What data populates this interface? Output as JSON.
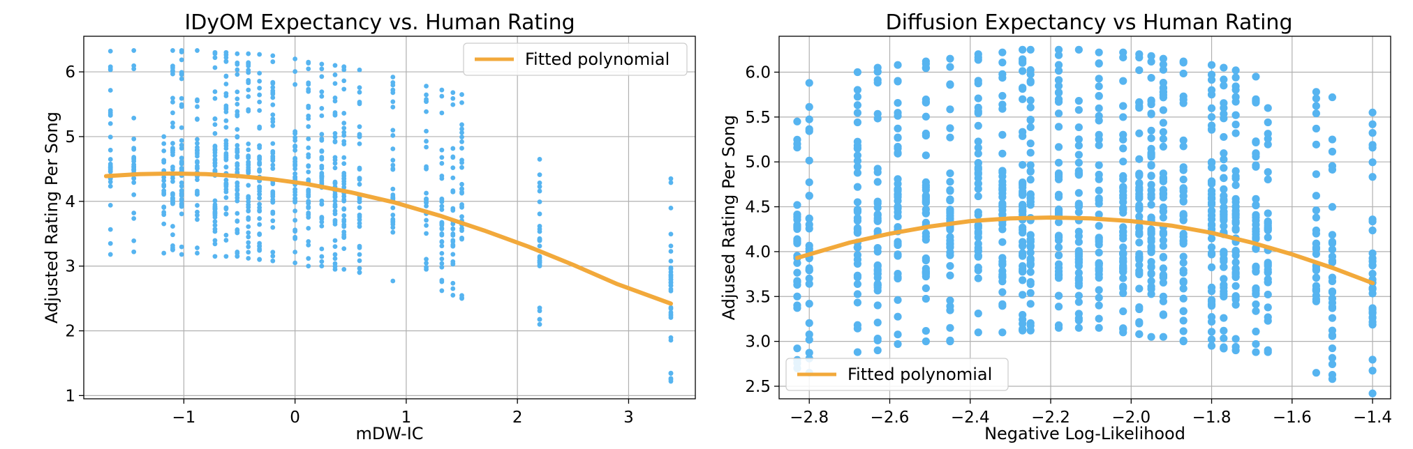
{
  "colors": {
    "points": "#56b4f0",
    "fit": "#f2a93b",
    "grid": "#b0b0b0",
    "axis": "#000000"
  },
  "chart_data": [
    {
      "type": "scatter",
      "title": "IDyOM Expectancy vs. Human Rating",
      "xlabel": "mDW-IC",
      "ylabel": "Adjusted Rating Per Song",
      "xlim": [
        -1.9,
        3.6
      ],
      "ylim": [
        0.95,
        6.55
      ],
      "xticks": [
        -1,
        0,
        1,
        2,
        3
      ],
      "xtick_labels": [
        "−1",
        "0",
        "1",
        "2",
        "3"
      ],
      "yticks": [
        1,
        2,
        3,
        4,
        5,
        6
      ],
      "ytick_labels": [
        "1",
        "2",
        "3",
        "4",
        "5",
        "6"
      ],
      "grid": true,
      "legend": {
        "label": "Fitted polynomial",
        "position": "top-right"
      },
      "fit_curve": {
        "name": "Fitted polynomial",
        "x": [
          -1.7,
          -1.4,
          -1.1,
          -0.8,
          -0.5,
          -0.2,
          0.1,
          0.5,
          0.9,
          1.3,
          1.7,
          2.1,
          2.5,
          2.9,
          3.38
        ],
        "y": [
          4.39,
          4.42,
          4.43,
          4.42,
          4.39,
          4.34,
          4.27,
          4.14,
          3.98,
          3.78,
          3.55,
          3.3,
          3.02,
          2.72,
          2.42
        ]
      },
      "columns": [
        {
          "x": -1.66,
          "ymin": 3.18,
          "ymax": 6.32,
          "n": 34,
          "dense": [
            4.3,
            4.6
          ]
        },
        {
          "x": -1.45,
          "ymin": 3.22,
          "ymax": 6.33,
          "n": 30,
          "dense": [
            4.4,
            4.7
          ]
        },
        {
          "x": -1.18,
          "ymin": 3.2,
          "ymax": 5.0,
          "n": 24,
          "dense": [
            4.0,
            4.7
          ]
        },
        {
          "x": -1.1,
          "ymin": 3.25,
          "ymax": 6.33,
          "n": 44,
          "dense": [
            3.9,
            4.9
          ]
        },
        {
          "x": -1.02,
          "ymin": 3.18,
          "ymax": 6.33,
          "n": 44,
          "dense": [
            3.9,
            4.9
          ]
        },
        {
          "x": -0.88,
          "ymin": 3.2,
          "ymax": 6.33,
          "n": 34,
          "dense": [
            4.0,
            4.8
          ]
        },
        {
          "x": -0.72,
          "ymin": 3.15,
          "ymax": 6.3,
          "n": 48,
          "dense": [
            3.8,
            4.9
          ]
        },
        {
          "x": -0.62,
          "ymin": 3.15,
          "ymax": 6.3,
          "n": 50,
          "dense": [
            3.8,
            4.9
          ]
        },
        {
          "x": -0.52,
          "ymin": 3.15,
          "ymax": 6.28,
          "n": 50,
          "dense": [
            3.8,
            4.9
          ]
        },
        {
          "x": -0.42,
          "ymin": 3.12,
          "ymax": 6.28,
          "n": 50,
          "dense": [
            3.8,
            4.9
          ]
        },
        {
          "x": -0.32,
          "ymin": 3.1,
          "ymax": 6.27,
          "n": 48,
          "dense": [
            3.8,
            4.9
          ]
        },
        {
          "x": -0.2,
          "ymin": 3.08,
          "ymax": 6.25,
          "n": 44,
          "dense": [
            3.8,
            4.9
          ]
        },
        {
          "x": 0.0,
          "ymin": 3.05,
          "ymax": 6.2,
          "n": 44,
          "dense": [
            3.8,
            4.8
          ]
        },
        {
          "x": 0.12,
          "ymin": 3.0,
          "ymax": 6.15,
          "n": 42,
          "dense": [
            3.7,
            4.7
          ]
        },
        {
          "x": 0.24,
          "ymin": 3.0,
          "ymax": 6.12,
          "n": 42,
          "dense": [
            3.7,
            4.7
          ]
        },
        {
          "x": 0.36,
          "ymin": 2.95,
          "ymax": 6.1,
          "n": 42,
          "dense": [
            3.6,
            4.7
          ]
        },
        {
          "x": 0.44,
          "ymin": 2.95,
          "ymax": 6.08,
          "n": 40,
          "dense": [
            3.6,
            4.6
          ]
        },
        {
          "x": 0.58,
          "ymin": 2.9,
          "ymax": 6.03,
          "n": 34,
          "dense": [
            3.6,
            4.5
          ]
        },
        {
          "x": 0.88,
          "ymin": 2.77,
          "ymax": 5.92,
          "n": 32,
          "dense": [
            3.5,
            4.3
          ]
        },
        {
          "x": 1.18,
          "ymin": 2.95,
          "ymax": 5.78,
          "n": 28,
          "dense": [
            3.5,
            4.2
          ]
        },
        {
          "x": 1.32,
          "ymin": 2.62,
          "ymax": 5.72,
          "n": 32,
          "dense": [
            3.3,
            4.2
          ]
        },
        {
          "x": 1.42,
          "ymin": 2.55,
          "ymax": 5.68,
          "n": 32,
          "dense": [
            3.3,
            4.2
          ]
        },
        {
          "x": 1.5,
          "ymin": 2.5,
          "ymax": 5.65,
          "n": 32,
          "dense": [
            3.3,
            4.2
          ]
        },
        {
          "x": 2.2,
          "ymin": 2.1,
          "ymax": 4.65,
          "n": 28,
          "dense": [
            3.0,
            3.8
          ]
        },
        {
          "x": 3.38,
          "ymin": 1.22,
          "ymax": 4.35,
          "n": 34,
          "dense": [
            2.2,
            3.0
          ]
        }
      ]
    },
    {
      "type": "scatter",
      "title": "Diffusion Expectancy vs Human Rating",
      "xlabel": "Negative Log-Likelihood",
      "ylabel": "Adjused Rating Per Song",
      "xlim": [
        -2.875,
        -1.355
      ],
      "ylim": [
        2.36,
        6.4
      ],
      "xticks": [
        -2.8,
        -2.6,
        -2.4,
        -2.2,
        -2.0,
        -1.8,
        -1.6,
        -1.4
      ],
      "xtick_labels": [
        "−2.8",
        "−2.6",
        "−2.4",
        "−2.2",
        "−2.0",
        "−1.8",
        "−1.6",
        "−1.4"
      ],
      "yticks": [
        2.5,
        3.0,
        3.5,
        4.0,
        4.5,
        5.0,
        5.5,
        6.0
      ],
      "ytick_labels": [
        "2.5",
        "3.0",
        "3.5",
        "4.0",
        "4.5",
        "5.0",
        "5.5",
        "6.0"
      ],
      "grid": true,
      "legend": {
        "label": "Fitted polynomial",
        "position": "bottom-left"
      },
      "fit_curve": {
        "name": "Fitted polynomial",
        "x": [
          -2.83,
          -2.7,
          -2.6,
          -2.5,
          -2.4,
          -2.3,
          -2.2,
          -2.1,
          -2.0,
          -1.9,
          -1.8,
          -1.7,
          -1.6,
          -1.5,
          -1.4
        ],
        "y": [
          3.93,
          4.1,
          4.2,
          4.28,
          4.34,
          4.37,
          4.38,
          4.37,
          4.34,
          4.29,
          4.21,
          4.1,
          3.97,
          3.82,
          3.65
        ]
      },
      "columns": [
        {
          "x": -2.83,
          "ymin": 2.7,
          "ymax": 5.45,
          "n": 30,
          "dense": [
            3.6,
            4.4
          ]
        },
        {
          "x": -2.8,
          "ymin": 2.65,
          "ymax": 5.88,
          "n": 30,
          "dense": [
            3.6,
            4.4
          ]
        },
        {
          "x": -2.68,
          "ymin": 2.88,
          "ymax": 6.0,
          "n": 40,
          "dense": [
            3.6,
            4.6
          ]
        },
        {
          "x": -2.63,
          "ymin": 2.9,
          "ymax": 6.05,
          "n": 40,
          "dense": [
            3.6,
            4.7
          ]
        },
        {
          "x": -2.58,
          "ymin": 2.97,
          "ymax": 6.08,
          "n": 44,
          "dense": [
            3.7,
            4.8
          ]
        },
        {
          "x": -2.51,
          "ymin": 3.0,
          "ymax": 6.12,
          "n": 44,
          "dense": [
            3.7,
            4.8
          ]
        },
        {
          "x": -2.45,
          "ymin": 3.0,
          "ymax": 6.15,
          "n": 44,
          "dense": [
            3.7,
            4.8
          ]
        },
        {
          "x": -2.38,
          "ymin": 3.1,
          "ymax": 6.2,
          "n": 44,
          "dense": [
            3.7,
            4.9
          ]
        },
        {
          "x": -2.32,
          "ymin": 3.1,
          "ymax": 6.22,
          "n": 44,
          "dense": [
            3.7,
            4.9
          ]
        },
        {
          "x": -2.27,
          "ymin": 3.12,
          "ymax": 6.25,
          "n": 50,
          "dense": [
            3.6,
            4.9
          ]
        },
        {
          "x": -2.25,
          "ymin": 3.12,
          "ymax": 6.25,
          "n": 50,
          "dense": [
            3.6,
            4.9
          ]
        },
        {
          "x": -2.18,
          "ymin": 3.15,
          "ymax": 6.25,
          "n": 46,
          "dense": [
            3.6,
            4.9
          ]
        },
        {
          "x": -2.13,
          "ymin": 3.15,
          "ymax": 6.25,
          "n": 44,
          "dense": [
            3.6,
            4.9
          ]
        },
        {
          "x": -2.08,
          "ymin": 3.15,
          "ymax": 6.22,
          "n": 44,
          "dense": [
            3.6,
            4.9
          ]
        },
        {
          "x": -2.02,
          "ymin": 3.1,
          "ymax": 6.22,
          "n": 50,
          "dense": [
            3.6,
            4.9
          ]
        },
        {
          "x": -1.98,
          "ymin": 3.08,
          "ymax": 6.2,
          "n": 50,
          "dense": [
            3.5,
            4.9
          ]
        },
        {
          "x": -1.95,
          "ymin": 3.05,
          "ymax": 6.18,
          "n": 50,
          "dense": [
            3.5,
            4.9
          ]
        },
        {
          "x": -1.92,
          "ymin": 3.05,
          "ymax": 6.15,
          "n": 48,
          "dense": [
            3.5,
            4.9
          ]
        },
        {
          "x": -1.87,
          "ymin": 3.0,
          "ymax": 6.12,
          "n": 44,
          "dense": [
            3.5,
            4.8
          ]
        },
        {
          "x": -1.8,
          "ymin": 2.95,
          "ymax": 6.08,
          "n": 50,
          "dense": [
            3.4,
            4.8
          ]
        },
        {
          "x": -1.77,
          "ymin": 2.92,
          "ymax": 6.05,
          "n": 50,
          "dense": [
            3.4,
            4.7
          ]
        },
        {
          "x": -1.74,
          "ymin": 2.9,
          "ymax": 6.02,
          "n": 50,
          "dense": [
            3.4,
            4.7
          ]
        },
        {
          "x": -1.69,
          "ymin": 2.88,
          "ymax": 5.95,
          "n": 40,
          "dense": [
            3.5,
            4.6
          ]
        },
        {
          "x": -1.66,
          "ymin": 2.88,
          "ymax": 5.6,
          "n": 34,
          "dense": [
            3.5,
            4.5
          ]
        },
        {
          "x": -1.54,
          "ymin": 2.65,
          "ymax": 5.78,
          "n": 32,
          "dense": [
            3.4,
            4.3
          ]
        },
        {
          "x": -1.5,
          "ymin": 2.58,
          "ymax": 5.72,
          "n": 32,
          "dense": [
            3.3,
            4.2
          ]
        },
        {
          "x": -1.4,
          "ymin": 2.42,
          "ymax": 5.55,
          "n": 34,
          "dense": [
            3.2,
            4.0
          ]
        }
      ]
    }
  ]
}
